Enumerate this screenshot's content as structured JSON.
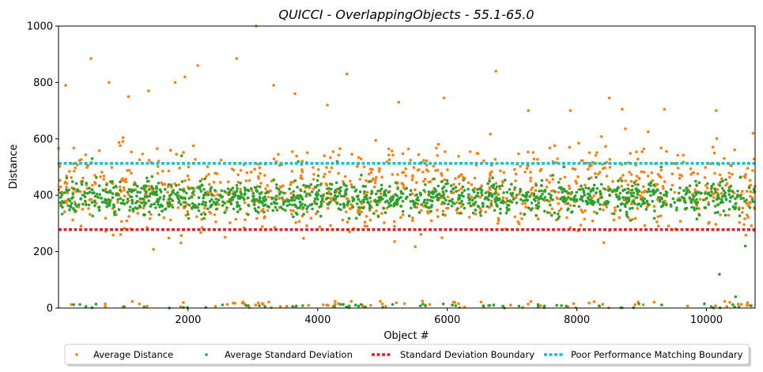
{
  "chart_data": {
    "type": "scatter",
    "title": "QUICCI - OverlappingObjects - 55.1-65.0",
    "xlabel": "Object #",
    "ylabel": "Distance",
    "xlim": [
      0,
      10750
    ],
    "ylim": [
      0,
      1000
    ],
    "xticks": [
      2000,
      4000,
      6000,
      8000,
      10000
    ],
    "yticks": [
      0,
      200,
      400,
      600,
      800,
      1000
    ],
    "grid": false,
    "legend_position": "bottom-center",
    "series": [
      {
        "name": "Average Distance",
        "color": "#ff7f0e",
        "kind": "points",
        "band_mean": 420,
        "band_spread": 190,
        "points": [
          [
            110,
            790
          ],
          [
            500,
            885
          ],
          [
            780,
            800
          ],
          [
            1080,
            750
          ],
          [
            1390,
            770
          ],
          [
            1800,
            800
          ],
          [
            1950,
            820
          ],
          [
            2150,
            860
          ],
          [
            2750,
            885
          ],
          [
            3050,
            1000
          ],
          [
            3320,
            790
          ],
          [
            3650,
            760
          ],
          [
            4150,
            720
          ],
          [
            4450,
            830
          ],
          [
            5250,
            730
          ],
          [
            5950,
            745
          ],
          [
            6750,
            840
          ],
          [
            7250,
            700
          ],
          [
            7900,
            700
          ],
          [
            8500,
            745
          ],
          [
            8700,
            705
          ],
          [
            9350,
            705
          ],
          [
            10150,
            700
          ],
          [
            10720,
            620
          ]
        ]
      },
      {
        "name": "Average Standard Deviation",
        "color": "#2ca02c",
        "kind": "points",
        "band_mean": 390,
        "band_spread": 70,
        "points": [
          [
            520,
            530
          ],
          [
            1900,
            540
          ],
          [
            3700,
            520
          ],
          [
            4300,
            520
          ],
          [
            5600,
            515
          ],
          [
            7800,
            500
          ],
          [
            9300,
            500
          ],
          [
            10600,
            220
          ],
          [
            10200,
            120
          ],
          [
            10450,
            40
          ]
        ]
      },
      {
        "name": "Standard Deviation Boundary",
        "color": "#d62728",
        "kind": "hline",
        "y": 278
      },
      {
        "name": "Poor Performance Matching Boundary",
        "color": "#17becf",
        "kind": "hline",
        "y": 513
      }
    ]
  }
}
